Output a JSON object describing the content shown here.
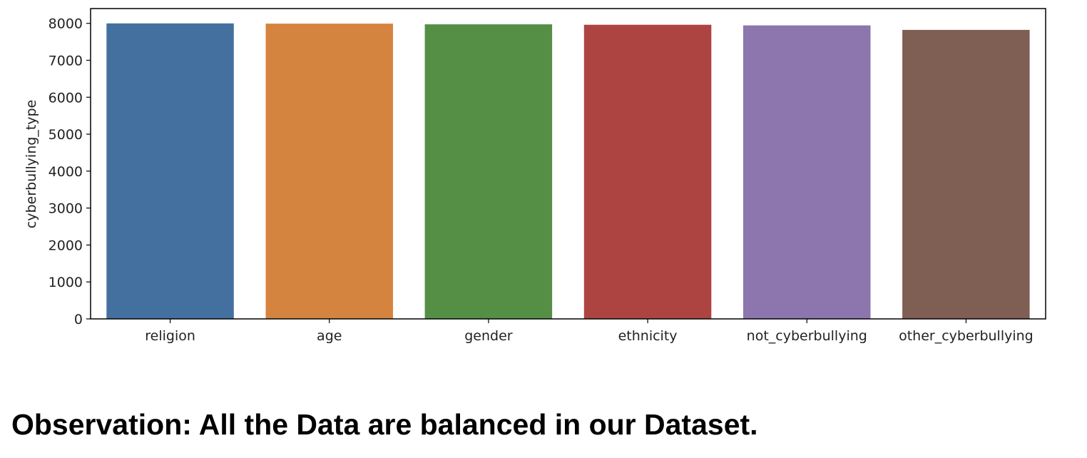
{
  "chart_data": {
    "type": "bar",
    "categories": [
      "religion",
      "age",
      "gender",
      "ethnicity",
      "not_cyberbullying",
      "other_cyberbullying"
    ],
    "values": [
      7998,
      7992,
      7973,
      7961,
      7945,
      7823
    ],
    "colors": [
      "#4470a0",
      "#d5843f",
      "#558f46",
      "#ae4442",
      "#8d75ad",
      "#7f5e54"
    ],
    "xlabel": "",
    "ylabel": "cyberbullying_type",
    "ylim": [
      0,
      8400
    ],
    "yticks": [
      0,
      1000,
      2000,
      3000,
      4000,
      5000,
      6000,
      7000,
      8000
    ],
    "grid": false,
    "legend": "none"
  },
  "observation": "Observation: All the Data are balanced in our Dataset."
}
